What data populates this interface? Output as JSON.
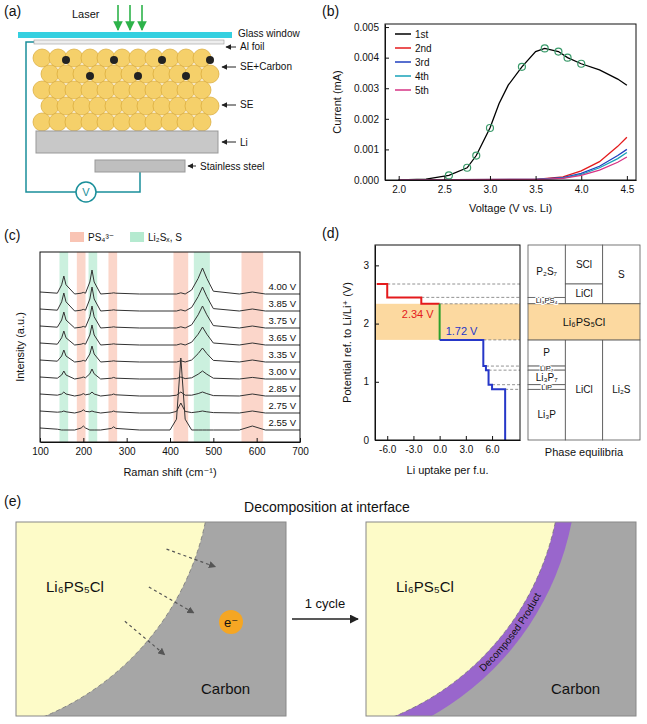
{
  "panel_a": {
    "letter": "(a)",
    "laser": "Laser",
    "glass": "Glass window",
    "foil": "Al foil",
    "cathode": "SE+Carbon",
    "electrolyte": "SE",
    "anode": "Li",
    "steel": "Stainless steel",
    "meter": "V"
  },
  "chart_data": [
    {
      "type": "line",
      "letter": "(b)",
      "xlabel": "Voltage (V vs. Li)",
      "ylabel": "Current (mA)",
      "xlim": [
        1.85,
        4.6
      ],
      "xticks": [
        {
          "value": 2.0,
          "label": "2.0"
        },
        2.5,
        {
          "value": 3.0,
          "label": "3.0"
        },
        3.5,
        {
          "value": 4.0,
          "label": "4.0"
        },
        4.5
      ],
      "ylim": [
        0,
        0.0051
      ],
      "yticks": [
        {
          "value": 0,
          "label": "0.000"
        },
        {
          "value": 0.001,
          "label": "0.001"
        },
        {
          "value": 0.002,
          "label": "0.002"
        },
        {
          "value": 0.003,
          "label": "0.003"
        },
        {
          "value": 0.004,
          "label": "0.004"
        },
        {
          "value": 0.005,
          "label": "0.005"
        }
      ],
      "grid": false,
      "legend": "upper-left",
      "series": [
        {
          "name": "1st",
          "color": "#000000",
          "x": [
            2.0,
            2.3,
            2.55,
            2.75,
            2.85,
            3.0,
            3.1,
            3.2,
            3.35,
            3.5,
            3.6,
            3.75,
            3.85,
            4.0,
            4.2,
            4.4,
            4.5
          ],
          "values": [
            0,
            3e-05,
            0.00015,
            0.0004,
            0.0008,
            0.0017,
            0.0025,
            0.0031,
            0.0037,
            0.0042,
            0.0043,
            0.0042,
            0.004,
            0.0038,
            0.0036,
            0.0033,
            0.0031
          ]
        },
        {
          "name": "2nd",
          "color": "#e41a1c",
          "x": [
            2.0,
            3.5,
            3.8,
            4.0,
            4.2,
            4.4,
            4.5
          ],
          "values": [
            0,
            2e-05,
            0.0001,
            0.0003,
            0.0006,
            0.0011,
            0.0014
          ]
        },
        {
          "name": "3rd",
          "color": "#1f3fbf",
          "x": [
            2.0,
            3.5,
            3.8,
            4.0,
            4.2,
            4.4,
            4.5
          ],
          "values": [
            0,
            2e-05,
            8e-05,
            0.00022,
            0.00045,
            0.0008,
            0.001
          ]
        },
        {
          "name": "4th",
          "color": "#17a2b8",
          "x": [
            2.0,
            3.5,
            3.8,
            4.0,
            4.2,
            4.4,
            4.5
          ],
          "values": [
            0,
            1e-05,
            6e-05,
            0.00018,
            0.0004,
            0.0007,
            0.0009
          ]
        },
        {
          "name": "5th",
          "color": "#d63384",
          "x": [
            2.0,
            3.5,
            3.8,
            4.0,
            4.2,
            4.4,
            4.5
          ],
          "values": [
            0,
            1e-05,
            5e-05,
            0.00015,
            0.00032,
            0.00058,
            0.00075
          ]
        }
      ],
      "markers": {
        "marker": "circle",
        "color": "#3a9a6a",
        "x": [
          2.55,
          2.75,
          2.85,
          3.0,
          3.35,
          3.6,
          3.75,
          3.85,
          4.0
        ],
        "values": [
          0.00015,
          0.0004,
          0.0008,
          0.0017,
          0.0037,
          0.0043,
          0.0042,
          0.004,
          0.0038
        ]
      }
    },
    {
      "type": "line",
      "letter": "(c)",
      "xlabel": "Raman shift (cm⁻¹)",
      "ylabel": "Intensity (a.u.)",
      "xlim": [
        100,
        700
      ],
      "xticks": [
        100,
        200,
        300,
        400,
        500,
        600,
        700
      ],
      "ylim": [
        0,
        2.1
      ],
      "tick_labels": "x",
      "grid": false,
      "legend": "top",
      "x": [
        100,
        140,
        150,
        155,
        160,
        180,
        195,
        200,
        205,
        215,
        220,
        225,
        240,
        265,
        270,
        275,
        330,
        400,
        415,
        425,
        435,
        450,
        465,
        475,
        485,
        500,
        560,
        590,
        620,
        700
      ],
      "series": [
        {
          "name": "2.55 V",
          "color": "#333333",
          "values": [
            0.15,
            0.12,
            0.1,
            0.1,
            0.1,
            0.1,
            0.15,
            0.2,
            0.15,
            0.1,
            0.1,
            0.1,
            0.1,
            0.14,
            0.18,
            0.14,
            0.1,
            0.1,
            0.37,
            1.9,
            0.37,
            0.1,
            0.1,
            0.1,
            0.1,
            0.1,
            0.1,
            0.2,
            0.1,
            0.1
          ]
        },
        {
          "name": "2.75 V",
          "color": "#333333",
          "values": [
            0.15,
            0.12,
            0.13,
            0.15,
            0.13,
            0.1,
            0.14,
            0.18,
            0.14,
            0.13,
            0.15,
            0.13,
            0.1,
            0.13,
            0.15,
            0.13,
            0.1,
            0.1,
            0.14,
            0.35,
            0.14,
            0.11,
            0.13,
            0.15,
            0.13,
            0.11,
            0.1,
            0.15,
            0.1,
            0.1
          ]
        },
        {
          "name": "2.85 V",
          "color": "#333333",
          "values": [
            0.15,
            0.12,
            0.15,
            0.2,
            0.15,
            0.1,
            0.13,
            0.16,
            0.13,
            0.15,
            0.2,
            0.15,
            0.1,
            0.13,
            0.15,
            0.13,
            0.1,
            0.1,
            0.12,
            0.2,
            0.12,
            0.12,
            0.16,
            0.2,
            0.16,
            0.11,
            0.1,
            0.15,
            0.1,
            0.1
          ]
        },
        {
          "name": "3.00 V",
          "color": "#333333",
          "values": [
            0.15,
            0.12,
            0.2,
            0.3,
            0.2,
            0.1,
            0.13,
            0.15,
            0.13,
            0.23,
            0.35,
            0.23,
            0.1,
            0.12,
            0.14,
            0.12,
            0.1,
            0.1,
            0.11,
            0.15,
            0.11,
            0.13,
            0.22,
            0.3,
            0.22,
            0.12,
            0.1,
            0.14,
            0.1,
            0.1
          ]
        },
        {
          "name": "3.35 V",
          "color": "#333333",
          "values": [
            0.15,
            0.12,
            0.25,
            0.4,
            0.25,
            0.1,
            0.12,
            0.14,
            0.12,
            0.3,
            0.5,
            0.3,
            0.1,
            0.12,
            0.13,
            0.12,
            0.1,
            0.1,
            0.1,
            0.13,
            0.1,
            0.15,
            0.31,
            0.45,
            0.31,
            0.14,
            0.1,
            0.15,
            0.1,
            0.1
          ]
        },
        {
          "name": "3.65 V",
          "color": "#333333",
          "values": [
            0.15,
            0.12,
            0.28,
            0.45,
            0.28,
            0.1,
            0.12,
            0.14,
            0.12,
            0.35,
            0.6,
            0.35,
            0.1,
            0.12,
            0.13,
            0.12,
            0.1,
            0.1,
            0.1,
            0.13,
            0.1,
            0.17,
            0.37,
            0.55,
            0.37,
            0.15,
            0.1,
            0.15,
            0.1,
            0.1
          ]
        },
        {
          "name": "3.75 V",
          "color": "#333333",
          "values": [
            0.15,
            0.12,
            0.3,
            0.5,
            0.3,
            0.1,
            0.12,
            0.14,
            0.12,
            0.38,
            0.65,
            0.38,
            0.1,
            0.12,
            0.13,
            0.12,
            0.1,
            0.1,
            0.1,
            0.13,
            0.1,
            0.18,
            0.43,
            0.65,
            0.43,
            0.16,
            0.1,
            0.15,
            0.1,
            0.1
          ]
        },
        {
          "name": "3.85 V",
          "color": "#333333",
          "values": [
            0.15,
            0.12,
            0.33,
            0.55,
            0.33,
            0.1,
            0.12,
            0.14,
            0.12,
            0.4,
            0.7,
            0.4,
            0.1,
            0.12,
            0.13,
            0.12,
            0.1,
            0.1,
            0.1,
            0.13,
            0.1,
            0.19,
            0.46,
            0.7,
            0.46,
            0.16,
            0.1,
            0.15,
            0.1,
            0.1
          ]
        },
        {
          "name": "4.00 V",
          "color": "#333333",
          "values": [
            0.15,
            0.12,
            0.33,
            0.55,
            0.33,
            0.1,
            0.12,
            0.14,
            0.12,
            0.4,
            0.7,
            0.4,
            0.1,
            0.12,
            0.13,
            0.12,
            0.1,
            0.1,
            0.1,
            0.13,
            0.1,
            0.2,
            0.49,
            0.75,
            0.49,
            0.17,
            0.1,
            0.15,
            0.1,
            0.1
          ]
        }
      ],
      "bands": [
        {
          "name": "PS₄³⁻",
          "color": "#f9c4b4",
          "ranges": [
            [
              185,
              205
            ],
            [
              258,
              278
            ],
            [
              408,
              442
            ],
            [
              565,
              615
            ]
          ]
        },
        {
          "name": "Li₂Sₓ, S",
          "color": "#b5ead0",
          "ranges": [
            [
              145,
              165
            ],
            [
              212,
              232
            ],
            [
              455,
              492
            ]
          ]
        }
      ]
    },
    {
      "type": "line",
      "letter": "(d)",
      "xlabel": "Li uptake per f.u.",
      "ylabel": "Potential ref. to Li/Li⁺ (V)",
      "xlim": [
        -7.4,
        9.2
      ],
      "xticks": [
        {
          "value": -6,
          "label": "-6.0"
        },
        {
          "value": -3,
          "label": "-3.0"
        },
        {
          "value": 0,
          "label": "0.0"
        },
        {
          "value": 3,
          "label": "3.0"
        },
        {
          "value": 6,
          "label": "6.0"
        }
      ],
      "ylim": [
        0,
        3.35
      ],
      "yticks": [
        0,
        1,
        2,
        3
      ],
      "grid": false,
      "band": {
        "y0": 1.72,
        "y1": 2.34,
        "color": "#fcd9a0"
      },
      "series": [
        {
          "color": "#e41a1c",
          "annotation": "2.34 V",
          "x": [
            -7.2,
            -6.0,
            -6.0,
            -2.1,
            -2.1,
            0
          ],
          "values": [
            2.68,
            2.68,
            2.45,
            2.45,
            2.34,
            2.34
          ]
        },
        {
          "color": "#2ca02c",
          "x": [
            0,
            0
          ],
          "values": [
            2.34,
            1.72
          ]
        },
        {
          "color": "#2637c8",
          "annotation": "1.72 V",
          "x": [
            0,
            5.0,
            5.0,
            5.3,
            5.3,
            5.6,
            5.6,
            6.0,
            6.0,
            7.5,
            7.5
          ],
          "values": [
            1.72,
            1.72,
            1.27,
            1.27,
            1.2,
            1.2,
            0.95,
            0.95,
            0.87,
            0.87,
            0
          ]
        }
      ],
      "phase_table": {
        "title": "Phase equilibria",
        "spanning": {
          "label": "Li₆PS₅Cl"
        },
        "columns": [
          [
            {
              "label": "P₂S₇",
              "y0": 2.45,
              "y1": 3.35
            },
            {
              "label": "Li₃PS₄",
              "y0": 2.34,
              "y1": 2.45
            },
            {
              "label": "P",
              "y0": 1.27,
              "y1": 1.72
            },
            {
              "label": "LiP₇",
              "y0": 1.2,
              "y1": 1.27
            },
            {
              "label": "Li₃P₇",
              "y0": 0.95,
              "y1": 1.2
            },
            {
              "label": "LiP",
              "y0": 0.87,
              "y1": 0.95
            },
            {
              "label": "Li₃P",
              "y0": 0,
              "y1": 0.87
            }
          ],
          [
            {
              "label": "SCl",
              "y0": 2.68,
              "y1": 3.35
            },
            {
              "label": "LiCl",
              "y0": 2.34,
              "y1": 2.68
            },
            {
              "label": "LiCl",
              "y0": 0,
              "y1": 1.72
            }
          ],
          [
            {
              "label": "S",
              "y0": 2.34,
              "y1": 3.35
            },
            {
              "label": "Li₂S",
              "y0": 0,
              "y1": 1.72
            }
          ]
        ]
      }
    }
  ],
  "panel_e": {
    "letter": "(e)",
    "title": "Decomposition at interface",
    "before": {
      "particle": "Li₆PS₅Cl",
      "matrix": "Carbon",
      "electron": "e⁻"
    },
    "step": "1 cycle",
    "after": {
      "particle": "Li₆PS₅Cl",
      "matrix": "Carbon",
      "product": "Decomposed Product"
    }
  }
}
